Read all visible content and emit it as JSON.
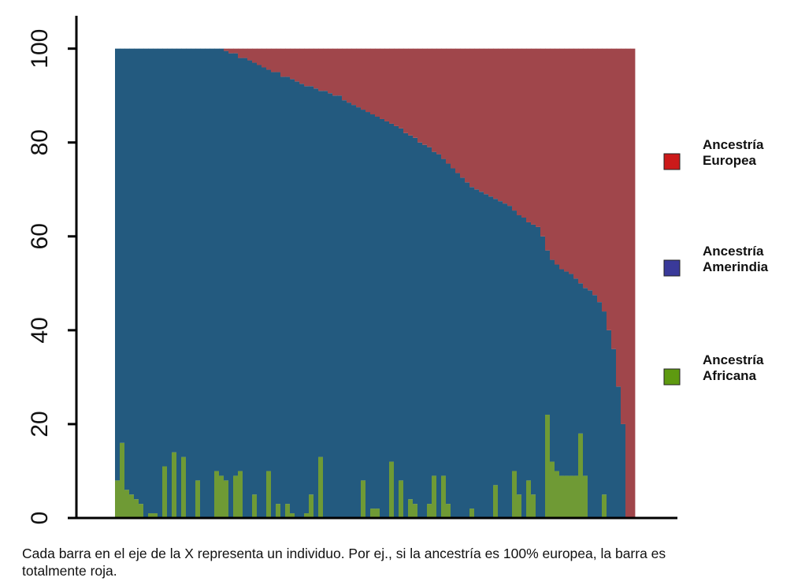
{
  "chart_data": {
    "type": "stacked_bar",
    "caption": "Cada barra en el eje de la X  representa un individuo. Por ej., si la ancestría es 100% europea, la barra es totalmente roja.",
    "ylim": [
      0,
      107
    ],
    "yticks": [
      0,
      20,
      40,
      60,
      80,
      100
    ],
    "series": [
      {
        "name": "Ancestría Africana",
        "color": "#6f9a35",
        "legend_color": "#5e9a10",
        "values": [
          8,
          16,
          6,
          5,
          4,
          3,
          0,
          1,
          1,
          0,
          11,
          0,
          14,
          0,
          13,
          0,
          0,
          8,
          0,
          0,
          0,
          10,
          9,
          8,
          0,
          9,
          10,
          0,
          0,
          5,
          0,
          0,
          10,
          0,
          3,
          0,
          3,
          1,
          0,
          0,
          1,
          5,
          0,
          13,
          0,
          0,
          0,
          0,
          0,
          0,
          0,
          0,
          8,
          0,
          2,
          2,
          0,
          0,
          12,
          0,
          8,
          0,
          4,
          3,
          0,
          0,
          3,
          9,
          0,
          9,
          3,
          0,
          0,
          0,
          0,
          2,
          0,
          0,
          0,
          0,
          7,
          0,
          0,
          0,
          10,
          5,
          0,
          8,
          5,
          0,
          0,
          22,
          12,
          10,
          9,
          9,
          9,
          9,
          18,
          9,
          0,
          0,
          0,
          5,
          0,
          0,
          0,
          0,
          0,
          0
        ]
      },
      {
        "name": "Ancestría Amerindia",
        "color": "#235a7f",
        "legend_color": "#3a3a9a",
        "values": [
          92,
          84,
          94,
          95,
          96,
          97,
          100,
          99,
          99,
          100,
          89,
          100,
          86,
          100,
          87,
          100,
          100,
          92,
          100,
          100,
          100,
          90,
          91,
          91.5,
          99,
          90,
          88,
          98,
          97.5,
          92,
          96.5,
          96,
          85.5,
          95,
          92,
          94,
          91,
          92.5,
          93,
          92.5,
          91,
          87,
          91.5,
          78,
          91,
          90.5,
          90,
          90,
          89,
          88.5,
          88,
          87.5,
          79,
          86.5,
          84,
          83.5,
          85,
          84.5,
          72,
          83.5,
          75,
          82,
          77.5,
          78,
          80,
          79.5,
          76,
          69,
          77.5,
          67.5,
          72.5,
          74.5,
          73.5,
          72.5,
          71.5,
          68.5,
          70,
          69.5,
          69,
          68.5,
          61,
          67.5,
          67,
          66.5,
          55.5,
          59.5,
          64,
          55,
          57.5,
          62,
          60,
          35,
          43,
          44,
          44,
          43.5,
          43,
          42,
          32,
          40,
          48.5,
          47.5,
          46,
          39,
          40,
          36,
          28,
          20,
          0,
          0
        ]
      },
      {
        "name": "Ancestría Europea",
        "color": "#a0464b",
        "legend_color": "#cc1a1a",
        "values": [
          0,
          0,
          0,
          0,
          0,
          0,
          0,
          0,
          0,
          0,
          0,
          0,
          0,
          0,
          0,
          0,
          0,
          0,
          0,
          0,
          0,
          0,
          0,
          0.5,
          1,
          1,
          2,
          2,
          2.5,
          3,
          3.5,
          4,
          4.5,
          5,
          5,
          6,
          6,
          6.5,
          7,
          7.5,
          8,
          8,
          8.5,
          9,
          9,
          9.5,
          10,
          10,
          11,
          11.5,
          12,
          12.5,
          13,
          13.5,
          14,
          14.5,
          15,
          15.5,
          16,
          16.5,
          17,
          18,
          18.5,
          19,
          20,
          20.5,
          21,
          22,
          22.5,
          23.5,
          24.5,
          25.5,
          26.5,
          27.5,
          28.5,
          29.5,
          30,
          30.5,
          31,
          31.5,
          32,
          32.5,
          33,
          33.5,
          34.5,
          35.5,
          36,
          37,
          37.5,
          38,
          40,
          43,
          45,
          46,
          47,
          47.5,
          48,
          49,
          50,
          51,
          51.5,
          52.5,
          54,
          56,
          60,
          64,
          72,
          80,
          100,
          100
        ]
      }
    ]
  }
}
